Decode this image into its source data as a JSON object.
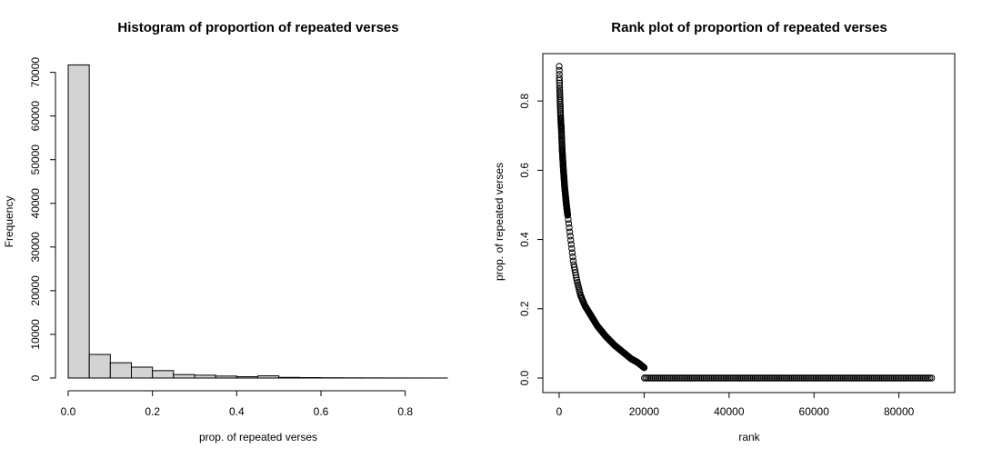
{
  "chart_data": [
    {
      "type": "bar",
      "title": "Histogram of proportion of repeated verses",
      "xlabel": "prop. of repeated verses",
      "ylabel": "Frequency",
      "xlim": [
        0,
        0.9
      ],
      "ylim": [
        0,
        72000
      ],
      "xticks": [
        "0.0",
        "0.2",
        "0.4",
        "0.6",
        "0.8"
      ],
      "yticks": [
        "0",
        "10000",
        "20000",
        "30000",
        "40000",
        "50000",
        "60000",
        "70000"
      ],
      "bin_width": 0.05,
      "bins": [
        0,
        0.05,
        0.1,
        0.15,
        0.2,
        0.25,
        0.3,
        0.35,
        0.4,
        0.45,
        0.5,
        0.55,
        0.6,
        0.65,
        0.7,
        0.75,
        0.8,
        0.85
      ],
      "values": [
        71700,
        5400,
        3500,
        2500,
        1700,
        800,
        650,
        450,
        300,
        500,
        150,
        100,
        60,
        40,
        30,
        20,
        15,
        10
      ],
      "grid": false
    },
    {
      "type": "scatter",
      "title": "Rank plot of proportion of repeated verses",
      "xlabel": "rank",
      "ylabel": "prop. of repeated verses",
      "xlim": [
        0,
        88000
      ],
      "ylim": [
        0,
        0.9
      ],
      "xticks": [
        "0",
        "20000",
        "40000",
        "60000",
        "80000"
      ],
      "yticks": [
        "0.0",
        "0.2",
        "0.4",
        "0.6",
        "0.8"
      ],
      "marker": "open-circle",
      "curve": [
        [
          1,
          0.9
        ],
        [
          40,
          0.87
        ],
        [
          100,
          0.84
        ],
        [
          200,
          0.8
        ],
        [
          350,
          0.75
        ],
        [
          500,
          0.72
        ],
        [
          700,
          0.66
        ],
        [
          1000,
          0.6
        ],
        [
          1300,
          0.55
        ],
        [
          1700,
          0.5
        ],
        [
          2200,
          0.45
        ],
        [
          2800,
          0.39
        ],
        [
          3400,
          0.33
        ],
        [
          4200,
          0.28
        ],
        [
          5000,
          0.24
        ],
        [
          6000,
          0.21
        ],
        [
          7500,
          0.18
        ],
        [
          9000,
          0.15
        ],
        [
          11000,
          0.12
        ],
        [
          13000,
          0.095
        ],
        [
          15000,
          0.075
        ],
        [
          17000,
          0.055
        ],
        [
          18500,
          0.045
        ],
        [
          19500,
          0.035
        ],
        [
          20000,
          0.03
        ],
        [
          20100,
          0.0
        ],
        [
          88000,
          0.0
        ]
      ],
      "grid": false
    }
  ]
}
